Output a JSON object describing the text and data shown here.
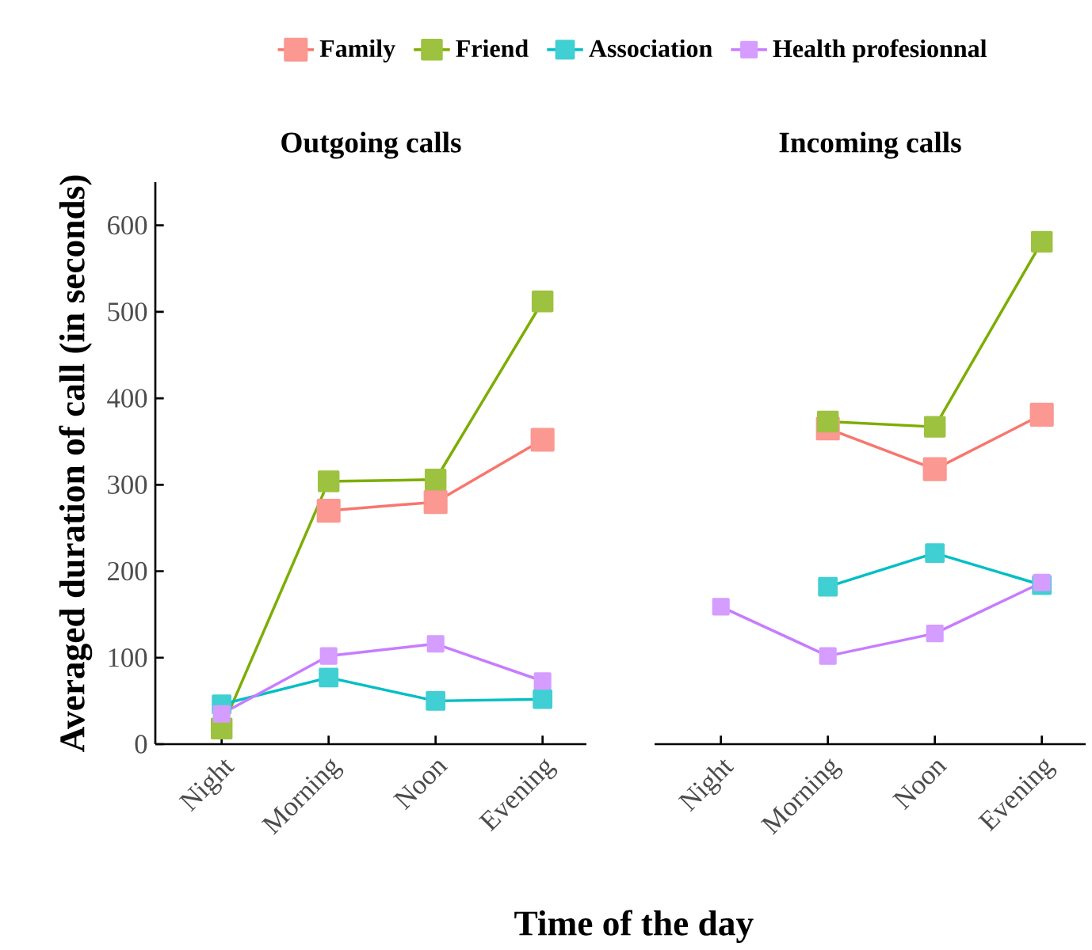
{
  "chart_data": [
    {
      "type": "line",
      "title": "Outgoing calls",
      "xlabel": "Time of the day",
      "ylabel": "Averaged duration of call (in seconds)",
      "categories": [
        "Night",
        "Morning",
        "Noon",
        "Evening"
      ],
      "ylim": [
        0,
        650
      ],
      "yticks": [
        0,
        100,
        200,
        300,
        400,
        500,
        600
      ],
      "marker": "square",
      "line_style": "solid",
      "legend": "top",
      "series": [
        {
          "name": "Family",
          "color": "#f8766d",
          "values": [
            null,
            270,
            280,
            352
          ]
        },
        {
          "name": "Friend",
          "color": "#7cae00",
          "values": [
            18,
            304,
            306,
            512
          ]
        },
        {
          "name": "Association",
          "color": "#00bfc4",
          "values": [
            46,
            77,
            50,
            52
          ]
        },
        {
          "name": "Health profesionnal",
          "color": "#c77cff",
          "values": [
            35,
            102,
            116,
            73
          ]
        }
      ]
    },
    {
      "type": "line",
      "title": "Incoming calls",
      "categories": [
        "Night",
        "Morning",
        "Noon",
        "Evening"
      ],
      "ylim": [
        0,
        600
      ],
      "yticks": [
        0,
        100,
        200,
        300,
        400,
        500,
        600
      ],
      "tick_labels": "x",
      "marker": "square",
      "line_style": "solid",
      "series": [
        {
          "color": "#f8766d",
          "values": [
            null,
            365,
            318,
            381
          ]
        },
        {
          "color": "#7cae00",
          "values": [
            null,
            373,
            367,
            581
          ]
        },
        {
          "color": "#00bfc4",
          "values": [
            null,
            182,
            221,
            184
          ]
        },
        {
          "color": "#c77cff",
          "values": [
            159,
            102,
            128,
            187
          ]
        }
      ]
    }
  ]
}
